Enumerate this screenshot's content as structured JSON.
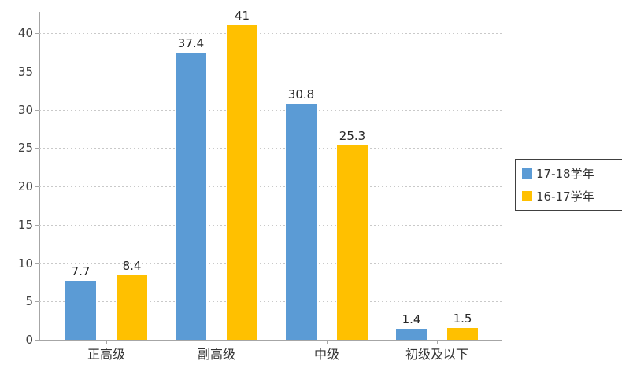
{
  "chart_data": {
    "type": "bar",
    "title": "",
    "categories": [
      "正高级",
      "副高级",
      "中级",
      "初级及以下"
    ],
    "series": [
      {
        "name": "17-18学年",
        "color": "#5B9BD5",
        "values": [
          7.7,
          37.4,
          30.8,
          1.4
        ],
        "value_labels": [
          "7.7",
          "37.4",
          "30.8",
          "1.4"
        ]
      },
      {
        "name": "16-17学年",
        "color": "#FFC000",
        "values": [
          8.4,
          41,
          25.3,
          1.5
        ],
        "value_labels": [
          "8.4",
          "41",
          "25.3",
          "1.5"
        ]
      }
    ],
    "xlabel": "",
    "ylabel": "",
    "ylim": [
      0,
      40
    ],
    "y_ticks": [
      0,
      5,
      10,
      15,
      20,
      25,
      30,
      35,
      40
    ],
    "grid": "horizontal-dashed",
    "legend_position": "right-middle",
    "colors": {
      "axis": "#a6a6a6",
      "gridline": "#c9c9c9",
      "tick_label": "#404040",
      "value_label": "#262626",
      "legend_border": "#404040"
    }
  }
}
